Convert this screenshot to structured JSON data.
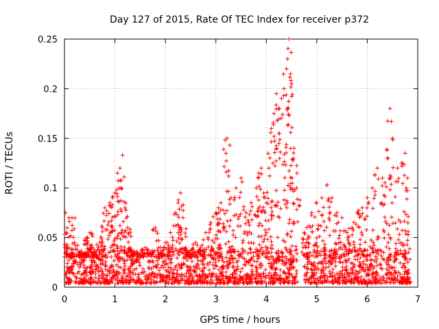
{
  "chart_data": {
    "type": "scatter",
    "title": "Day 127 of 2015, Rate Of TEC Index for receiver p372",
    "xlabel": "GPS time / hours",
    "ylabel": "ROTI / TECUs",
    "xlim": [
      0,
      7
    ],
    "ylim": [
      0,
      0.25
    ],
    "xticks": [
      "0",
      "1",
      "2",
      "3",
      "4",
      "5",
      "6",
      "7"
    ],
    "yticks": [
      "0",
      "0.05",
      "0.1",
      "0.15",
      "0.2",
      "0.25"
    ],
    "grid": true,
    "marker": "plus",
    "series": [
      {
        "name": "ROTI",
        "color": "#ff0000",
        "x": [
          0.02,
          0.03,
          0.05,
          0.1,
          0.15,
          0.2,
          0.3,
          0.4,
          0.45,
          0.5,
          0.55,
          0.6,
          0.7,
          0.75,
          0.8,
          0.9,
          0.95,
          1.0,
          1.05,
          1.1,
          1.12,
          1.15,
          1.2,
          1.25,
          1.3,
          1.4,
          1.5,
          1.6,
          1.7,
          1.8,
          1.9,
          2.0,
          2.1,
          2.2,
          2.25,
          2.3,
          2.35,
          2.4,
          2.5,
          2.6,
          2.7,
          2.8,
          2.9,
          3.0,
          3.05,
          3.1,
          3.2,
          3.22,
          3.3,
          3.4,
          3.5,
          3.6,
          3.7,
          3.8,
          3.85,
          3.9,
          3.95,
          4.0,
          4.05,
          4.1,
          4.15,
          4.2,
          4.25,
          4.3,
          4.35,
          4.4,
          4.42,
          4.45,
          4.48,
          4.5,
          4.55,
          4.6,
          4.75,
          4.8,
          4.9,
          5.0,
          5.1,
          5.2,
          5.3,
          5.4,
          5.5,
          5.6,
          5.7,
          5.8,
          5.9,
          6.0,
          6.1,
          6.2,
          6.3,
          6.4,
          6.45,
          6.5,
          6.6,
          6.7,
          6.75,
          6.8
        ],
        "y": [
          0.075,
          0.055,
          0.02,
          0.015,
          0.07,
          0.045,
          0.035,
          0.03,
          0.05,
          0.055,
          0.04,
          0.035,
          0.045,
          0.06,
          0.08,
          0.085,
          0.09,
          0.095,
          0.115,
          0.12,
          0.1,
          0.133,
          0.08,
          0.06,
          0.04,
          0.035,
          0.03,
          0.04,
          0.035,
          0.06,
          0.04,
          0.045,
          0.055,
          0.075,
          0.085,
          0.095,
          0.07,
          0.04,
          0.035,
          0.045,
          0.04,
          0.055,
          0.065,
          0.075,
          0.08,
          0.085,
          0.135,
          0.15,
          0.09,
          0.1,
          0.11,
          0.075,
          0.085,
          0.1,
          0.115,
          0.12,
          0.095,
          0.085,
          0.12,
          0.16,
          0.175,
          0.195,
          0.18,
          0.19,
          0.2,
          0.22,
          0.23,
          0.25,
          0.215,
          0.205,
          0.14,
          0.1,
          0.055,
          0.06,
          0.075,
          0.085,
          0.09,
          0.103,
          0.09,
          0.075,
          0.07,
          0.055,
          0.06,
          0.075,
          0.08,
          0.09,
          0.1,
          0.12,
          0.11,
          0.13,
          0.18,
          0.15,
          0.12,
          0.125,
          0.135,
          0.11
        ]
      }
    ],
    "baseline_band": "dense points between 0.005 and 0.035 across 0-4.6 h and 4.75-6.85 h"
  }
}
